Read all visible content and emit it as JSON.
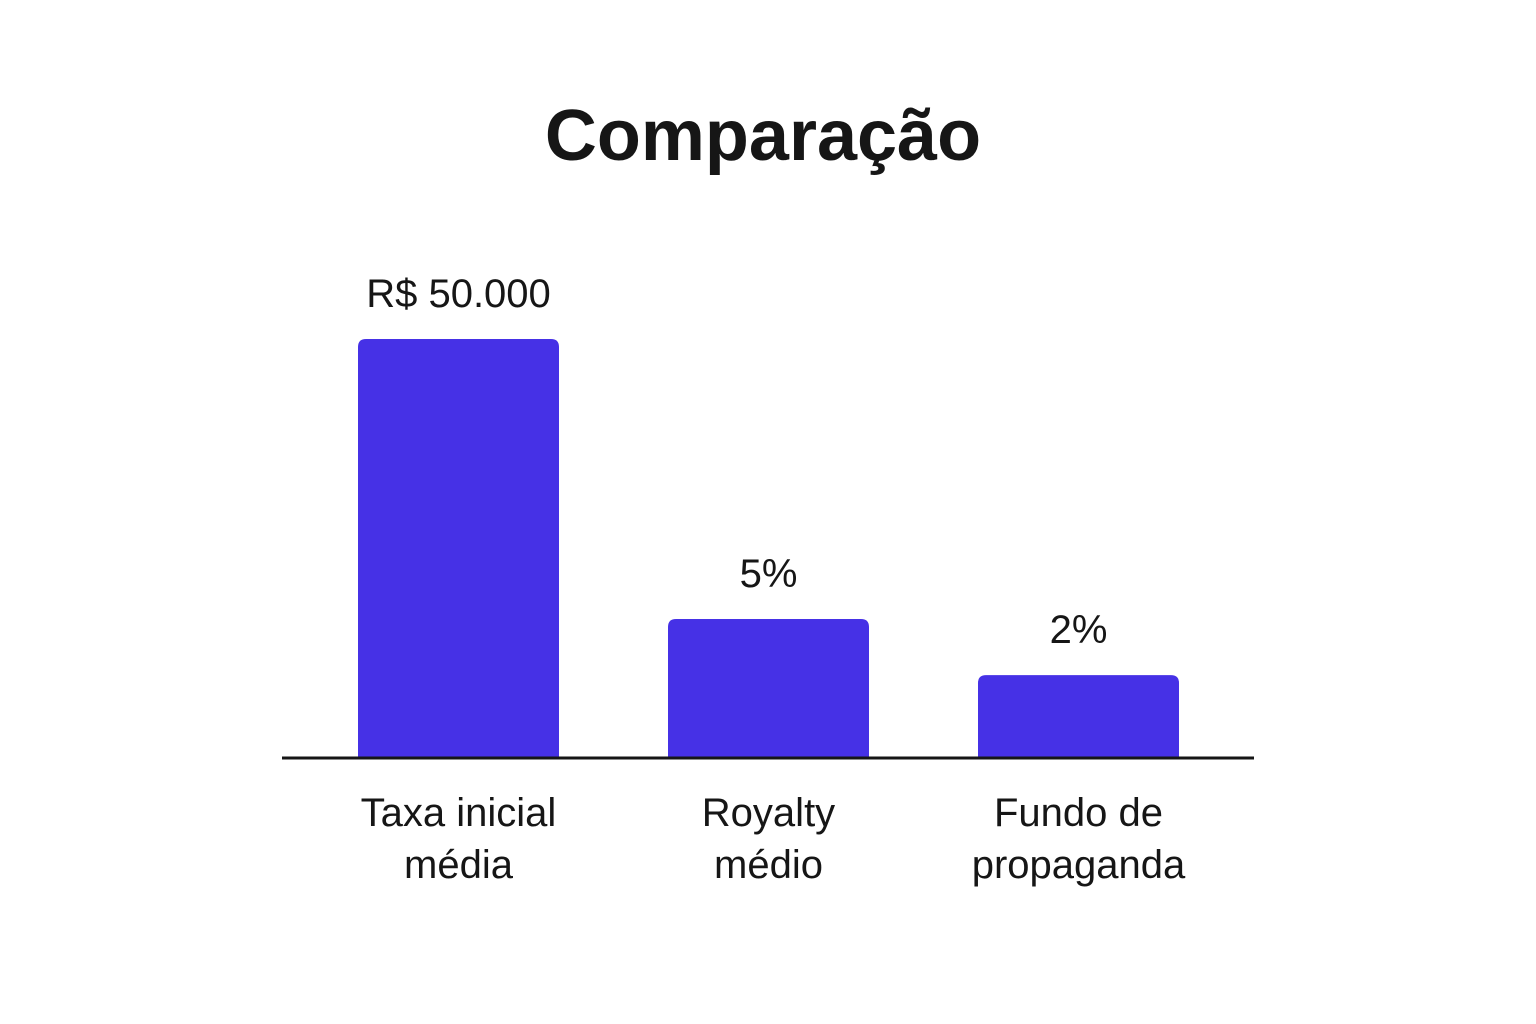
{
  "chart_data": {
    "type": "bar",
    "title": "Comparação",
    "categories": [
      [
        "Taxa inicial",
        "média"
      ],
      [
        "Royalty",
        "médio"
      ],
      [
        "Fundo de",
        "propaganda"
      ]
    ],
    "values": [
      50000,
      5,
      2
    ],
    "display_heights": [
      100,
      33,
      19.6
    ],
    "data_labels": [
      "R$ 50.000",
      "5%",
      "2%"
    ],
    "xlabel": "",
    "ylabel": "",
    "grid": false,
    "legend": "none",
    "bar_color": "#4631E6",
    "text_color": "#161616",
    "axis_color": "#161616"
  }
}
